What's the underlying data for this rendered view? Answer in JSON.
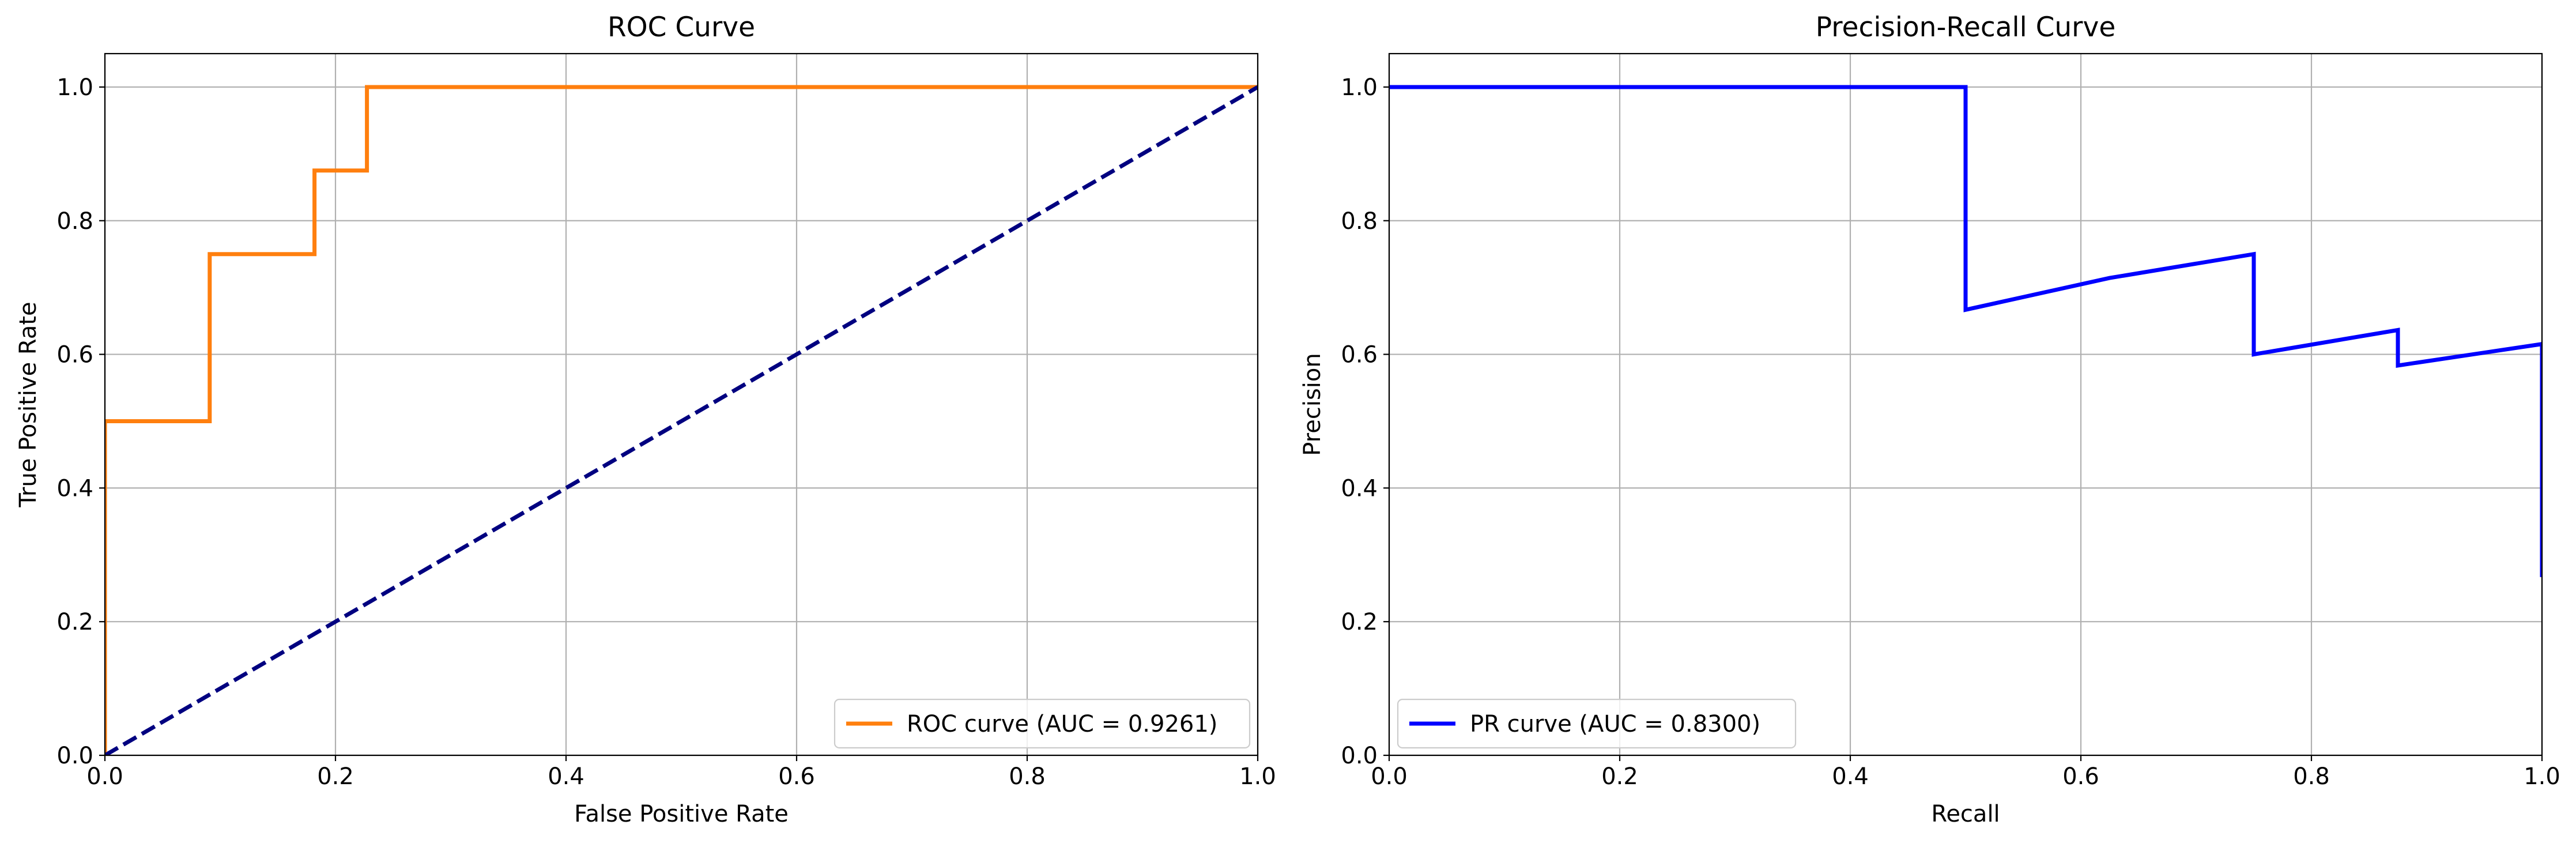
{
  "chart_data": [
    {
      "type": "line",
      "title": "ROC Curve",
      "xlabel": "False Positive Rate",
      "ylabel": "True Positive Rate",
      "xlim": [
        0,
        1.0
      ],
      "ylim": [
        0,
        1.05
      ],
      "xticks": [
        "0.0",
        "0.2",
        "0.4",
        "0.6",
        "0.8",
        "1.0"
      ],
      "yticks": [
        "0.0",
        "0.2",
        "0.4",
        "0.6",
        "0.8",
        "1.0"
      ],
      "grid": true,
      "legend_position": "lower-right",
      "series": [
        {
          "name": "ROC curve (AUC = 0.9261)",
          "color": "#ff7f0e",
          "style": "solid",
          "x": [
            0,
            0,
            0.0909,
            0.0909,
            0.1818,
            0.1818,
            0.2273,
            0.2273,
            1.0
          ],
          "y": [
            0,
            0.5,
            0.5,
            0.75,
            0.75,
            0.875,
            0.875,
            1.0,
            1.0
          ]
        },
        {
          "name": "",
          "color": "#000080",
          "style": "dashed",
          "x": [
            0,
            1
          ],
          "y": [
            0,
            1
          ]
        }
      ]
    },
    {
      "type": "line",
      "title": "Precision-Recall Curve",
      "xlabel": "Recall",
      "ylabel": "Precision",
      "xlim": [
        0,
        1.0
      ],
      "ylim": [
        0,
        1.05
      ],
      "xticks": [
        "0.0",
        "0.2",
        "0.4",
        "0.6",
        "0.8",
        "1.0"
      ],
      "yticks": [
        "0.0",
        "0.2",
        "0.4",
        "0.6",
        "0.8",
        "1.0"
      ],
      "grid": true,
      "legend_position": "lower-left",
      "series": [
        {
          "name": "PR curve (AUC = 0.8300)",
          "color": "#0000ff",
          "style": "solid",
          "x": [
            0,
            0.5,
            0.5,
            0.625,
            0.75,
            0.75,
            0.875,
            0.875,
            1.0,
            1.0
          ],
          "y": [
            1.0,
            1.0,
            0.6667,
            0.7143,
            0.75,
            0.6,
            0.6364,
            0.5833,
            0.6154,
            0.2667
          ]
        }
      ]
    }
  ]
}
